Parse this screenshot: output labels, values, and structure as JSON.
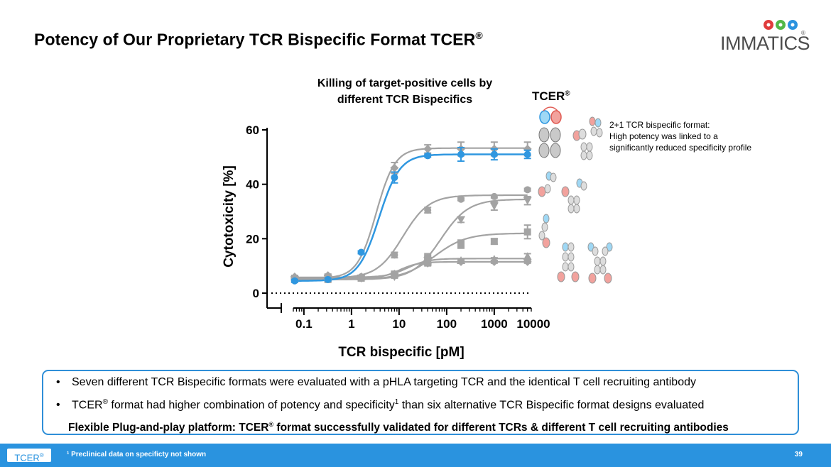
{
  "page": {
    "title": "Potency of Our Proprietary TCR Bispecific Format TCER",
    "title_mark": "®",
    "logo_text": "IMMATICS",
    "logo_mark": "®",
    "tcer_label": "TCER",
    "tcer_mark": "®",
    "annotation": [
      "2+1 TCR bispecific format:",
      "High potency was linked to a",
      "significantly reduced specificity profile"
    ],
    "bullets": [
      {
        "text": "Seven different TCR Bispecific formats were evaluated with a pHLA targeting TCR and the identical T cell recruiting antibody"
      },
      {
        "pre": "TCER",
        "mark": "®",
        "mid": " format had higher combination of potency and specificity",
        "sup": "1",
        "post": " than six alternative TCR Bispecific format designs evaluated"
      }
    ],
    "bold_line": {
      "pre": "Flexible Plug-and-play platform: TCER",
      "mark": "®",
      "post": " format successfully validated for different TCRs & different T cell recruiting antibodies"
    },
    "footer": {
      "tag": "TCER",
      "tag_mark": "®",
      "footnote": "¹ Preclinical data on specificty not shown",
      "page_number": "39"
    },
    "colors": {
      "tcer_blue": "#2f97e0",
      "grey": "#a3a3a3",
      "footer_blue": "#2a93df",
      "light_blue": "#9fd8f5",
      "pink": "#f2a29d"
    }
  },
  "chart_data": {
    "type": "line",
    "title": "Killing of target-positive cells by different TCR Bispecifics",
    "title_lines": [
      "Killing of target-positive cells by",
      "different TCR Bispecifics"
    ],
    "xlabel": "TCR bispecific [pM]",
    "ylabel": "Cytotoxicity [%]",
    "xscale": "log",
    "xlim": [
      0.06,
      6000
    ],
    "ylim": [
      0,
      60
    ],
    "yticks": [
      0,
      20,
      40,
      60
    ],
    "xticks": [
      0.1,
      1,
      10,
      100,
      1000,
      10000
    ],
    "xtick_labels": [
      "0.1",
      "1",
      "10",
      "100",
      "1000",
      "10000"
    ],
    "ytick_labels": [
      "0",
      "20",
      "40",
      "60"
    ],
    "baseline": 0,
    "x": [
      0.064,
      0.32,
      1.6,
      8,
      40,
      200,
      1000,
      5000
    ],
    "series": [
      {
        "color": "#a3a3a3",
        "marker": "diamond",
        "values": [
          6,
          6.5,
          6,
          46,
          53,
          53,
          53,
          53
        ],
        "errors": [
          0.5,
          0.5,
          0.5,
          2,
          1.5,
          2.5,
          2.5,
          2.5
        ],
        "fit": {
          "bottom": 5.5,
          "top": 53.3,
          "ec50": 3.3,
          "hill": 2.2
        }
      },
      {
        "color": "#a3a3a3",
        "marker": "circle",
        "values": [
          5.5,
          6,
          6,
          14,
          30.5,
          34.5,
          35.5,
          38
        ],
        "errors": [
          0.5,
          0.5,
          0.5,
          1,
          1,
          0.5,
          0.5,
          0.5
        ],
        "fit": {
          "bottom": 5.5,
          "top": 36,
          "ec50": 12,
          "hill": 1.6
        }
      },
      {
        "color": "#a3a3a3",
        "marker": "triangle-down",
        "values": [
          5,
          5.5,
          5.5,
          6,
          12,
          27,
          32,
          34
        ],
        "errors": [
          0.5,
          0.5,
          0.5,
          0.5,
          1.5,
          1,
          1.5,
          1.5
        ],
        "fit": {
          "bottom": 5,
          "top": 34.5,
          "ec50": 75,
          "hill": 1.5
        }
      },
      {
        "color": "#a3a3a3",
        "marker": "square",
        "values": [
          5,
          5,
          5.5,
          7,
          13,
          18,
          19,
          22.5
        ],
        "errors": [
          0.5,
          0.5,
          0.5,
          0.5,
          1.5,
          1.5,
          1,
          2.5
        ],
        "fit": {
          "bottom": 5,
          "top": 22,
          "ec50": 55,
          "hill": 1.3
        }
      },
      {
        "color": "#a3a3a3",
        "marker": "triangle-up",
        "values": [
          6,
          6,
          6,
          7,
          11.5,
          12,
          12.5,
          13.5
        ],
        "errors": [
          0.5,
          0.5,
          0.5,
          0.5,
          1,
          0.5,
          0.5,
          1
        ],
        "fit": {
          "bottom": 5.8,
          "top": 12.7,
          "ec50": 15,
          "hill": 2.0
        }
      },
      {
        "color": "#a3a3a3",
        "marker": "diamond",
        "values": [
          5.5,
          5.5,
          5.5,
          7,
          11,
          11.5,
          11.5,
          11.5
        ],
        "errors": [
          0.5,
          0.5,
          0.5,
          0.5,
          1,
          0.5,
          0.5,
          0.5
        ],
        "fit": {
          "bottom": 5.3,
          "top": 11.5,
          "ec50": 10,
          "hill": 2.2
        }
      },
      {
        "color": "#2f97e0",
        "marker": "circle",
        "values": [
          4.5,
          5,
          15,
          42.5,
          50.5,
          51,
          51,
          51
        ],
        "errors": [
          0.5,
          0.5,
          0.5,
          2,
          0.5,
          2.5,
          2,
          1.5
        ],
        "fit": {
          "bottom": 4.5,
          "top": 51,
          "ec50": 3.8,
          "hill": 2.0
        }
      }
    ]
  }
}
